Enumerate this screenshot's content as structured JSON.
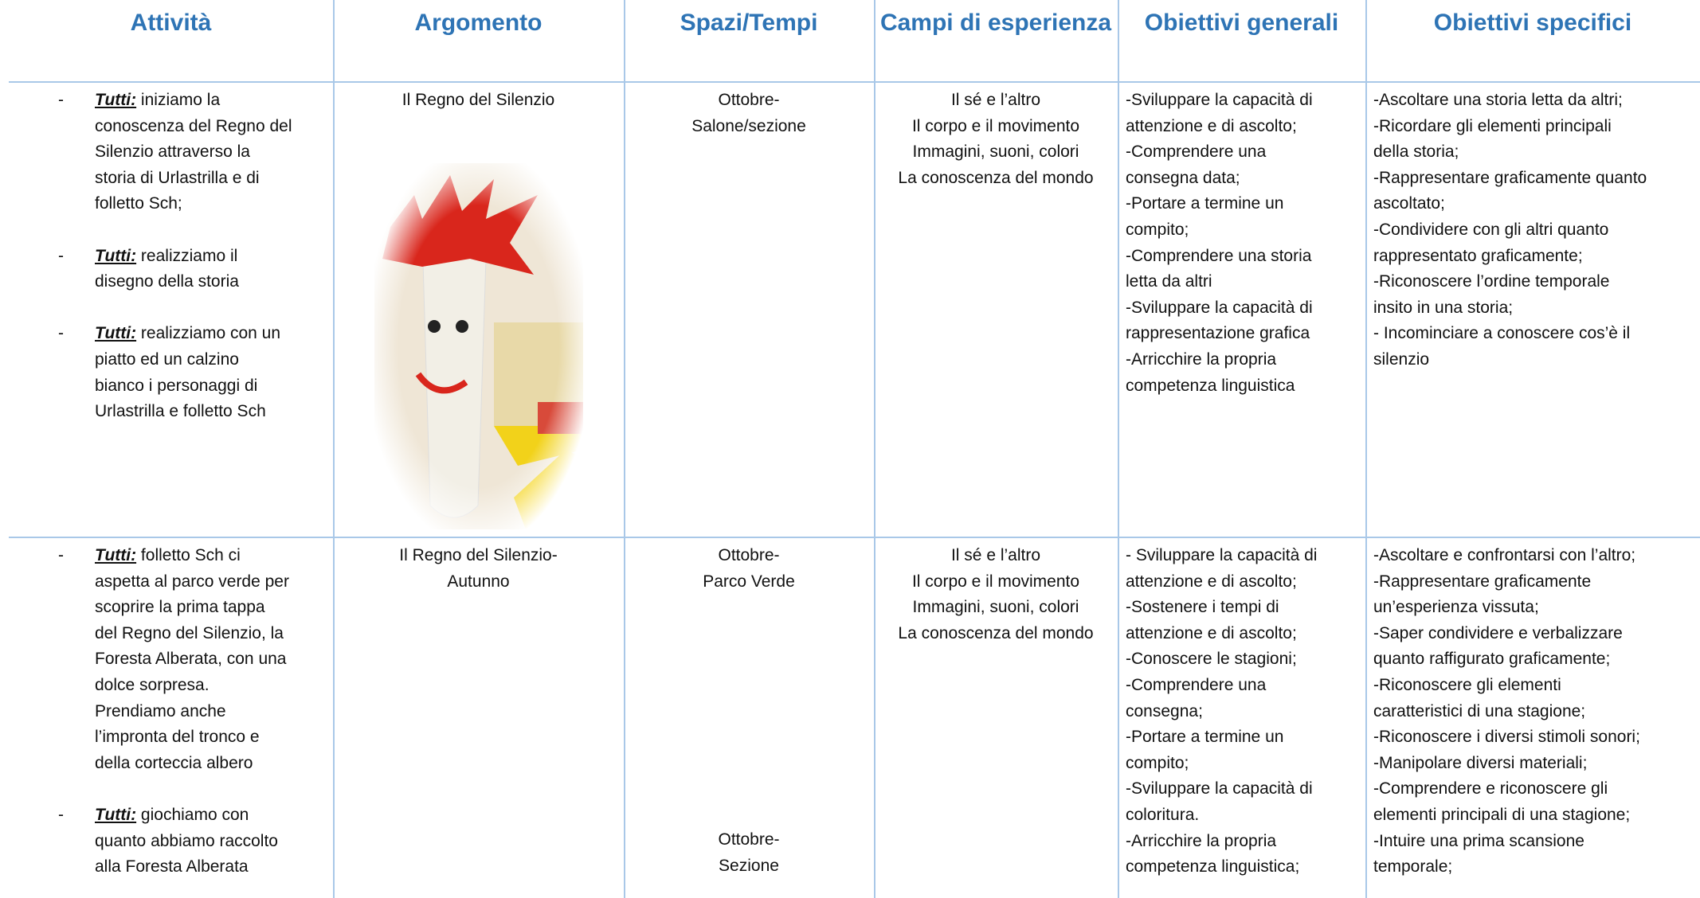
{
  "table": {
    "headers": [
      "Attività",
      "Argomento",
      "Spazi/Tempi",
      "Campi di esperienza",
      "Obiettivi generali",
      "Obiettivi specifici"
    ],
    "rows": [
      {
        "attivita": [
          {
            "bullet": "-",
            "label": "Tutti:",
            "lines": [
              " iniziamo la",
              "conoscenza del Regno del",
              "Silenzio attraverso la",
              "storia di Urlastrilla e di",
              "folletto Sch;"
            ]
          },
          {
            "bullet": "-",
            "label": "Tutti:",
            "lines": [
              " realizziamo il",
              "disegno della storia"
            ]
          },
          {
            "bullet": "-",
            "label": "Tutti:",
            "lines": [
              " realizziamo con un",
              "piatto ed un calzino",
              "bianco i personaggi di",
              "Urlastrilla e folletto Sch"
            ]
          }
        ],
        "argomento": [
          "Il Regno del Silenzio"
        ],
        "spazi": [
          [
            "Ottobre-",
            "Salone/sezione"
          ]
        ],
        "campi": [
          "Il sé e l’altro",
          "Il corpo e il movimento",
          "Immagini, suoni, colori",
          "La conoscenza del mondo"
        ],
        "generali": [
          "-Sviluppare la capacità di",
          "attenzione e di ascolto;",
          "-Comprendere una",
          "consegna data;",
          "-Portare a termine un",
          "compito;",
          "-Comprendere una storia",
          "letta da altri",
          "-Sviluppare la capacità di",
          "rappresentazione grafica",
          "-Arricchire la propria",
          "competenza linguistica"
        ],
        "specifici": [
          "-Ascoltare una storia letta da altri;",
          "-Ricordare gli elementi principali",
          "della storia;",
          "-Rappresentare graficamente quanto",
          "ascoltato;",
          "-Condividere con gli altri quanto",
          "rappresentato graficamente;",
          "-Riconoscere l’ordine temporale",
          "insito in una storia;",
          "- Incominciare a conoscere cos’è il",
          "silenzio"
        ]
      },
      {
        "attivita": [
          {
            "bullet": "-",
            "label": "Tutti:",
            "lines": [
              " folletto Sch ci",
              "aspetta al parco verde per",
              "scoprire la prima tappa",
              "del Regno del Silenzio, la",
              "Foresta Alberata, con una",
              "dolce sorpresa.",
              "Prendiamo anche",
              "l’impronta del tronco e",
              "della corteccia albero"
            ]
          },
          {
            "bullet": "-",
            "label": "Tutti:",
            "lines": [
              " giochiamo con",
              "quanto abbiamo raccolto",
              "alla Foresta Alberata"
            ]
          }
        ],
        "argomento": [
          "Il Regno del Silenzio-",
          "Autunno"
        ],
        "spazi": [
          [
            "Ottobre-",
            "Parco Verde"
          ],
          [
            "Ottobre-",
            "Sezione"
          ]
        ],
        "campi": [
          "Il sé e l’altro",
          "Il corpo e il movimento",
          "Immagini, suoni, colori",
          "La conoscenza del mondo"
        ],
        "generali": [
          "- Sviluppare la capacità di",
          "attenzione e di ascolto;",
          "-Sostenere i tempi di",
          "attenzione e di ascolto;",
          "-Conoscere le stagioni;",
          "-Comprendere una",
          "consegna;",
          "-Portare a termine un",
          "compito;",
          "-Sviluppare la capacità di",
          "coloritura.",
          "-Arricchire la propria",
          "competenza linguistica;"
        ],
        "specifici": [
          "-Ascoltare e confrontarsi con l’altro;",
          "-Rappresentare graficamente",
          "un’esperienza vissuta;",
          "-Saper condividere e verbalizzare",
          "quanto raffigurato graficamente;",
          "-Riconoscere gli elementi",
          "caratteristici di una stagione;",
          "-Riconoscere i diversi stimoli sonori;",
          "-Manipolare diversi materiali;",
          "-Comprendere e riconoscere gli",
          "elementi principali di una stagione;",
          "-Intuire una prima scansione",
          "temporale;"
        ]
      }
    ]
  }
}
